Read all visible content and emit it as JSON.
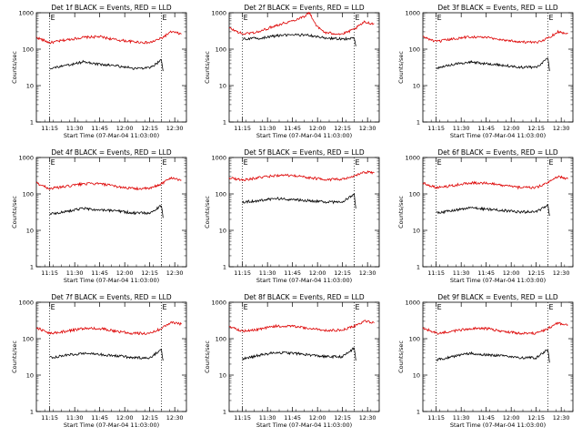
{
  "colors": {
    "events": "#000000",
    "lld": "#dd0000",
    "background": "#ffffff"
  },
  "chart_data": [
    {
      "type": "line",
      "detector": "1f",
      "title": "Det 1f BLACK = Events, RED = LLD",
      "xlabel": "Start Time (07-Mar-04 11:03:00)",
      "ylabel": "Counts/sec",
      "yscale": "log",
      "ylim": [
        1,
        1000
      ],
      "xlim": [
        "11:07",
        "12:37"
      ],
      "xticks": [
        "11:15",
        "11:30",
        "11:45",
        "12:00",
        "12:15",
        "12:30"
      ],
      "yticks": [
        "1",
        "10",
        "100",
        "1000"
      ],
      "markers": [
        {
          "x": "11:15",
          "label": "E"
        },
        {
          "x": "12:22",
          "label": "E"
        }
      ],
      "series": [
        {
          "name": "LLD",
          "color": "red",
          "x": [
            "11:07",
            "11:15",
            "11:25",
            "11:35",
            "11:45",
            "11:55",
            "12:05",
            "12:15",
            "12:22",
            "12:28",
            "12:34"
          ],
          "values": [
            210,
            150,
            180,
            210,
            220,
            180,
            160,
            150,
            200,
            300,
            260
          ]
        },
        {
          "name": "Events",
          "color": "black",
          "x": [
            "11:15",
            "11:25",
            "11:35",
            "11:45",
            "11:55",
            "12:05",
            "12:15",
            "12:22",
            "12:23"
          ],
          "values": [
            30,
            35,
            45,
            38,
            35,
            30,
            30,
            50,
            25
          ]
        }
      ]
    },
    {
      "type": "line",
      "detector": "2f",
      "title": "Det 2f BLACK = Events, RED = LLD",
      "xlabel": "Start Time (07-Mar-04 11:03:00)",
      "ylabel": "Counts/sec",
      "yscale": "log",
      "ylim": [
        1,
        1000
      ],
      "xlim": [
        "11:07",
        "12:37"
      ],
      "xticks": [
        "11:15",
        "11:30",
        "11:45",
        "12:00",
        "12:15",
        "12:30"
      ],
      "yticks": [
        "1",
        "10",
        "100",
        "1000"
      ],
      "markers": [
        {
          "x": "11:15",
          "label": "E"
        },
        {
          "x": "12:22",
          "label": "E"
        }
      ],
      "series": [
        {
          "name": "LLD",
          "color": "red",
          "x": [
            "11:07",
            "11:15",
            "11:25",
            "11:35",
            "11:45",
            "11:52",
            "11:55",
            "12:00",
            "12:05",
            "12:15",
            "12:22",
            "12:28",
            "12:34"
          ],
          "values": [
            380,
            260,
            300,
            450,
            600,
            800,
            1000,
            400,
            280,
            260,
            350,
            550,
            500
          ]
        },
        {
          "name": "Events",
          "color": "black",
          "x": [
            "11:15",
            "11:25",
            "11:35",
            "11:45",
            "11:55",
            "12:05",
            "12:15",
            "12:22",
            "12:23"
          ],
          "values": [
            190,
            200,
            230,
            250,
            240,
            200,
            190,
            200,
            120
          ]
        }
      ]
    },
    {
      "type": "line",
      "detector": "3f",
      "title": "Det 3f BLACK = Events, RED = LLD",
      "xlabel": "Start Time (07-Mar-04 11:03:00)",
      "ylabel": "Counts/sec",
      "yscale": "log",
      "ylim": [
        1,
        1000
      ],
      "xlim": [
        "11:07",
        "12:37"
      ],
      "xticks": [
        "11:15",
        "11:30",
        "11:45",
        "12:00",
        "12:15",
        "12:30"
      ],
      "yticks": [
        "1",
        "10",
        "100",
        "1000"
      ],
      "markers": [
        {
          "x": "11:15",
          "label": "E"
        },
        {
          "x": "12:22",
          "label": "E"
        }
      ],
      "series": [
        {
          "name": "LLD",
          "color": "red",
          "x": [
            "11:07",
            "11:15",
            "11:25",
            "11:35",
            "11:45",
            "11:55",
            "12:05",
            "12:15",
            "12:22",
            "12:28",
            "12:34"
          ],
          "values": [
            220,
            160,
            190,
            220,
            210,
            180,
            160,
            150,
            200,
            300,
            270
          ]
        },
        {
          "name": "Events",
          "color": "black",
          "x": [
            "11:15",
            "11:25",
            "11:35",
            "11:45",
            "11:55",
            "12:05",
            "12:15",
            "12:22",
            "12:23"
          ],
          "values": [
            30,
            38,
            45,
            40,
            36,
            32,
            32,
            55,
            25
          ]
        }
      ]
    },
    {
      "type": "line",
      "detector": "4f",
      "title": "Det 4f BLACK = Events, RED = LLD",
      "xlabel": "Start Time (07-Mar-04 11:03:00)",
      "ylabel": "Counts/sec",
      "yscale": "log",
      "ylim": [
        1,
        1000
      ],
      "xlim": [
        "11:07",
        "12:37"
      ],
      "xticks": [
        "11:15",
        "11:30",
        "11:45",
        "12:00",
        "12:15",
        "12:30"
      ],
      "yticks": [
        "1",
        "10",
        "100",
        "1000"
      ],
      "markers": [
        {
          "x": "11:15",
          "label": "E"
        },
        {
          "x": "12:22",
          "label": "E"
        }
      ],
      "series": [
        {
          "name": "LLD",
          "color": "red",
          "x": [
            "11:07",
            "11:15",
            "11:25",
            "11:35",
            "11:45",
            "11:55",
            "12:05",
            "12:15",
            "12:22",
            "12:28",
            "12:34"
          ],
          "values": [
            200,
            140,
            160,
            190,
            190,
            160,
            140,
            140,
            190,
            280,
            240
          ]
        },
        {
          "name": "Events",
          "color": "black",
          "x": [
            "11:15",
            "11:25",
            "11:35",
            "11:45",
            "11:55",
            "12:05",
            "12:15",
            "12:22",
            "12:23"
          ],
          "values": [
            28,
            33,
            40,
            36,
            34,
            30,
            30,
            48,
            22
          ]
        }
      ]
    },
    {
      "type": "line",
      "detector": "5f",
      "title": "Det 5f BLACK = Events, RED = LLD",
      "xlabel": "Start Time (07-Mar-04 11:03:00)",
      "ylabel": "Counts/sec",
      "yscale": "log",
      "ylim": [
        1,
        1000
      ],
      "xlim": [
        "11:07",
        "12:37"
      ],
      "xticks": [
        "11:15",
        "11:30",
        "11:45",
        "12:00",
        "12:15",
        "12:30"
      ],
      "yticks": [
        "1",
        "10",
        "100",
        "1000"
      ],
      "markers": [
        {
          "x": "11:15",
          "label": "E"
        },
        {
          "x": "12:22",
          "label": "E"
        }
      ],
      "series": [
        {
          "name": "LLD",
          "color": "red",
          "x": [
            "11:07",
            "11:15",
            "11:25",
            "11:35",
            "11:45",
            "11:55",
            "12:05",
            "12:15",
            "12:22",
            "12:28",
            "12:34"
          ],
          "values": [
            280,
            240,
            280,
            320,
            320,
            280,
            250,
            250,
            300,
            400,
            380
          ]
        },
        {
          "name": "Events",
          "color": "black",
          "x": [
            "11:15",
            "11:25",
            "11:35",
            "11:45",
            "11:55",
            "12:05",
            "12:15",
            "12:22",
            "12:23"
          ],
          "values": [
            60,
            65,
            75,
            70,
            65,
            60,
            60,
            100,
            40
          ]
        }
      ]
    },
    {
      "type": "line",
      "detector": "6f",
      "title": "Det 6f BLACK = Events, RED = LLD",
      "xlabel": "Start Time (07-Mar-04 11:03:00)",
      "ylabel": "Counts/sec",
      "yscale": "log",
      "ylim": [
        1,
        1000
      ],
      "xlim": [
        "11:07",
        "12:37"
      ],
      "xticks": [
        "11:15",
        "11:30",
        "11:45",
        "12:00",
        "12:15",
        "12:30"
      ],
      "yticks": [
        "1",
        "10",
        "100",
        "1000"
      ],
      "markers": [
        {
          "x": "11:15",
          "label": "E"
        },
        {
          "x": "12:22",
          "label": "E"
        }
      ],
      "series": [
        {
          "name": "LLD",
          "color": "red",
          "x": [
            "11:07",
            "11:15",
            "11:25",
            "11:35",
            "11:45",
            "11:55",
            "12:05",
            "12:15",
            "12:22",
            "12:28",
            "12:34"
          ],
          "values": [
            200,
            150,
            170,
            200,
            200,
            170,
            150,
            150,
            200,
            300,
            260
          ]
        },
        {
          "name": "Events",
          "color": "black",
          "x": [
            "11:15",
            "11:25",
            "11:35",
            "11:45",
            "11:55",
            "12:05",
            "12:15",
            "12:22",
            "12:23"
          ],
          "values": [
            30,
            35,
            42,
            38,
            35,
            32,
            32,
            50,
            25
          ]
        }
      ]
    },
    {
      "type": "line",
      "detector": "7f",
      "title": "Det 7f BLACK = Events, RED = LLD",
      "xlabel": "Start Time (07-Mar-04 11:03:00)",
      "ylabel": "Counts/sec",
      "yscale": "log",
      "ylim": [
        1,
        1000
      ],
      "xlim": [
        "11:07",
        "12:37"
      ],
      "xticks": [
        "11:15",
        "11:30",
        "11:45",
        "12:00",
        "12:15",
        "12:30"
      ],
      "yticks": [
        "1",
        "10",
        "100",
        "1000"
      ],
      "markers": [
        {
          "x": "11:15",
          "label": "E"
        },
        {
          "x": "12:22",
          "label": "E"
        }
      ],
      "series": [
        {
          "name": "LLD",
          "color": "red",
          "x": [
            "11:07",
            "11:15",
            "11:25",
            "11:35",
            "11:45",
            "11:55",
            "12:05",
            "12:15",
            "12:22",
            "12:28",
            "12:34"
          ],
          "values": [
            200,
            140,
            160,
            190,
            190,
            160,
            140,
            140,
            190,
            280,
            250
          ]
        },
        {
          "name": "Events",
          "color": "black",
          "x": [
            "11:15",
            "11:25",
            "11:35",
            "11:45",
            "11:55",
            "12:05",
            "12:15",
            "12:22",
            "12:23"
          ],
          "values": [
            30,
            35,
            40,
            37,
            34,
            30,
            30,
            50,
            25
          ]
        }
      ]
    },
    {
      "type": "line",
      "detector": "8f",
      "title": "Det 8f BLACK = Events, RED = LLD",
      "xlabel": "Start Time (07-Mar-04 11:03:00)",
      "ylabel": "Counts/sec",
      "yscale": "log",
      "ylim": [
        1,
        1000
      ],
      "xlim": [
        "11:07",
        "12:37"
      ],
      "xticks": [
        "11:15",
        "11:30",
        "11:45",
        "12:00",
        "12:15",
        "12:30"
      ],
      "yticks": [
        "1",
        "10",
        "100",
        "1000"
      ],
      "markers": [
        {
          "x": "11:15",
          "label": "E"
        },
        {
          "x": "12:22",
          "label": "E"
        }
      ],
      "series": [
        {
          "name": "LLD",
          "color": "red",
          "x": [
            "11:07",
            "11:15",
            "11:25",
            "11:35",
            "11:45",
            "11:55",
            "12:05",
            "12:15",
            "12:22",
            "12:28",
            "12:34"
          ],
          "values": [
            220,
            160,
            180,
            220,
            220,
            190,
            170,
            170,
            220,
            300,
            270
          ]
        },
        {
          "name": "Events",
          "color": "black",
          "x": [
            "11:15",
            "11:25",
            "11:35",
            "11:45",
            "11:55",
            "12:05",
            "12:15",
            "12:22",
            "12:23"
          ],
          "values": [
            28,
            35,
            42,
            40,
            36,
            32,
            32,
            55,
            25
          ]
        }
      ]
    },
    {
      "type": "line",
      "detector": "9f",
      "title": "Det 9f BLACK = Events, RED = LLD",
      "xlabel": "Start Time (07-Mar-04 11:03:00)",
      "ylabel": "Counts/sec",
      "yscale": "log",
      "ylim": [
        1,
        1000
      ],
      "xlim": [
        "11:07",
        "12:37"
      ],
      "xticks": [
        "11:15",
        "11:30",
        "11:45",
        "12:00",
        "12:15",
        "12:30"
      ],
      "yticks": [
        "1",
        "10",
        "100",
        "1000"
      ],
      "markers": [
        {
          "x": "11:15",
          "label": "E"
        },
        {
          "x": "12:22",
          "label": "E"
        }
      ],
      "series": [
        {
          "name": "LLD",
          "color": "red",
          "x": [
            "11:07",
            "11:15",
            "11:25",
            "11:35",
            "11:45",
            "11:55",
            "12:05",
            "12:15",
            "12:22",
            "12:28",
            "12:34"
          ],
          "values": [
            200,
            140,
            160,
            190,
            190,
            160,
            140,
            140,
            190,
            270,
            240
          ]
        },
        {
          "name": "Events",
          "color": "black",
          "x": [
            "11:15",
            "11:25",
            "11:35",
            "11:45",
            "11:55",
            "12:05",
            "12:15",
            "12:22",
            "12:23"
          ],
          "values": [
            26,
            32,
            40,
            36,
            34,
            30,
            30,
            50,
            22
          ]
        }
      ]
    }
  ]
}
